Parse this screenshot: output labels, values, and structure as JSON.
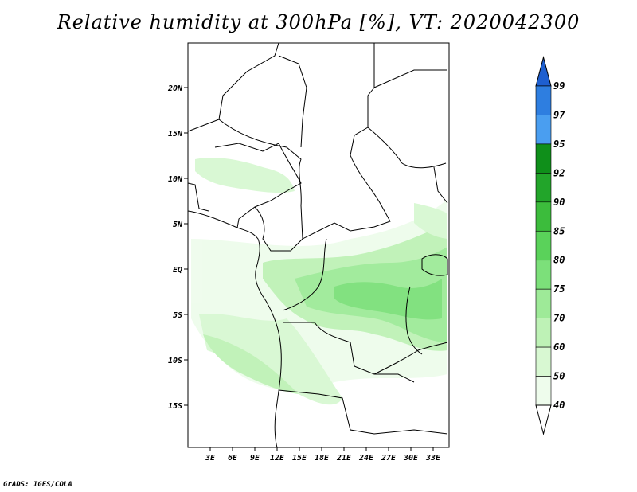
{
  "title": "Relative humidity at 300hPa [%], VT: 2020042300",
  "credit": "GrADS: IGES/COLA",
  "map": {
    "lat_labels": [
      "20N",
      "15N",
      "10N",
      "5N",
      "EQ",
      "5S",
      "10S",
      "15S"
    ],
    "lon_labels": [
      "3E",
      "6E",
      "9E",
      "12E",
      "15E",
      "18E",
      "21E",
      "24E",
      "27E",
      "30E",
      "33E"
    ]
  },
  "legend": {
    "levels": [
      "99",
      "97",
      "95",
      "92",
      "90",
      "85",
      "80",
      "75",
      "70",
      "60",
      "50",
      "40"
    ],
    "colors": [
      "#1e5fd0",
      "#2e7ee0",
      "#4a9ef0",
      "#0f8f1a",
      "#22a52a",
      "#3cbc3c",
      "#5ad25a",
      "#7ce07a",
      "#9eea98",
      "#bef2b6",
      "#d8f8d2",
      "#eefcec"
    ]
  }
}
